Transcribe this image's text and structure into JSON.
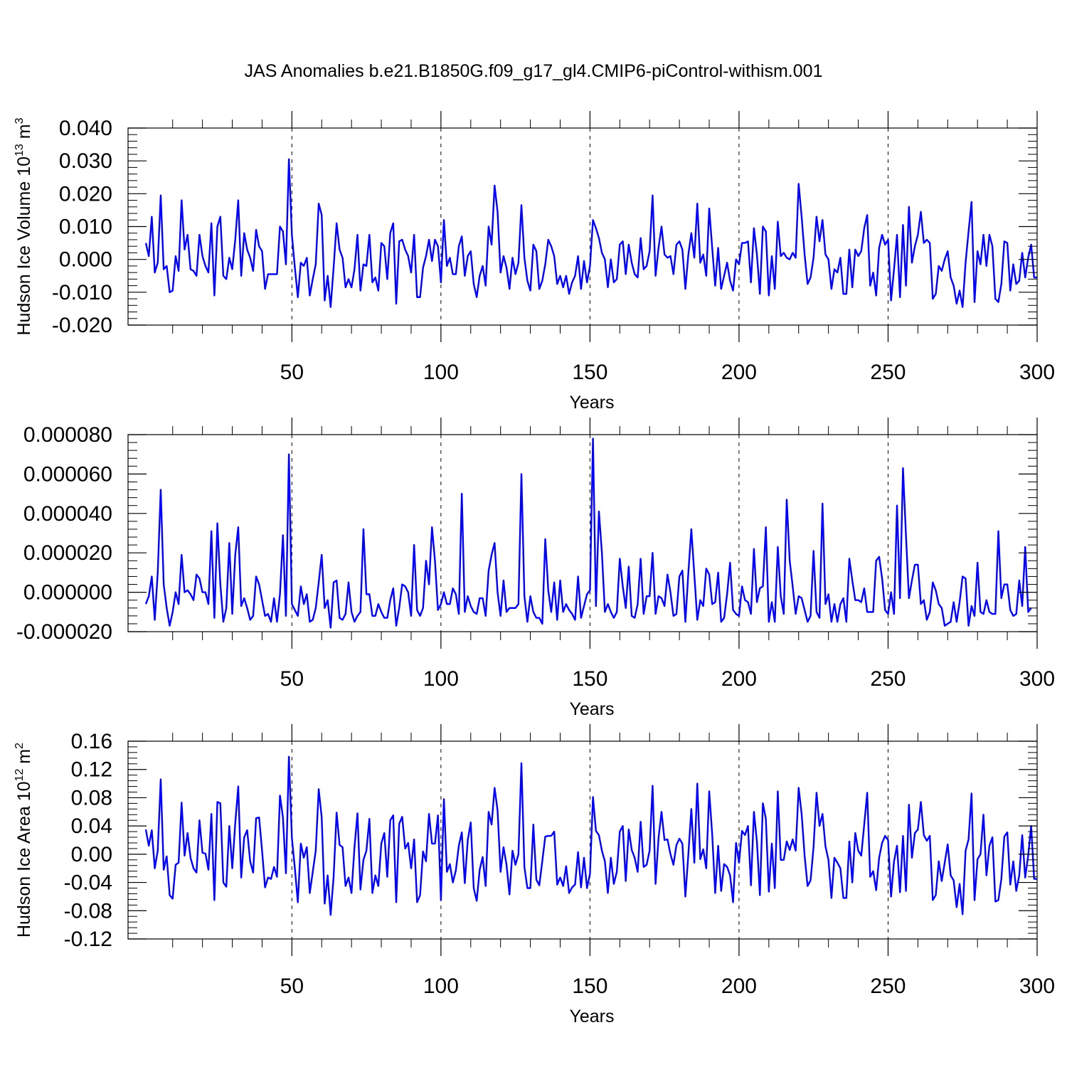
{
  "title": "JAS Anomalies b.e21.B1850G.f09_g17_gl4.CMIP6-piControl-withism.001",
  "chart_data": [
    {
      "type": "line",
      "xlabel": "Years",
      "ylabel": "Hudson Ice Volume 10",
      "ylabel_exp": "13",
      "ylabel_unit": " m",
      "ylabel_unit_exp": "3",
      "xlim": [
        1,
        300
      ],
      "ylim": [
        -0.02,
        0.04
      ],
      "x_ticks": [
        50,
        100,
        150,
        200,
        250,
        300
      ],
      "y_ticks": [
        -0.02,
        -0.01,
        0.0,
        0.01,
        0.02,
        0.03,
        0.04
      ],
      "y_tick_labels": [
        "-0.020",
        "-0.010",
        "0.000",
        "0.010",
        "0.020",
        "0.030",
        "0.040"
      ],
      "grid": "vertical dashed at x ticks",
      "color": "#0000ff",
      "x_start": 1,
      "x_step": 1,
      "values": [
        0.005,
        0.001,
        0.013,
        -0.004,
        -0.001,
        0.0195,
        -0.003,
        -0.002,
        -0.01,
        -0.0095,
        0.001,
        -0.0035,
        0.018,
        0.003,
        0.0075,
        -0.003,
        -0.0035,
        -0.005,
        0.0075,
        0.001,
        -0.002,
        -0.004,
        0.011,
        -0.011,
        0.01,
        0.013,
        -0.005,
        -0.006,
        0.0005,
        -0.003,
        0.006,
        0.018,
        -0.005,
        0.008,
        0.003,
        0.0005,
        -0.0035,
        0.009,
        0.004,
        0.0025,
        -0.009,
        -0.0045,
        -0.0045,
        -0.0045,
        -0.0045,
        0.01,
        0.0085,
        -0.0015,
        0.0305,
        0.0075,
        -0.0025,
        -0.0115,
        -0.001,
        -0.002,
        0.0005,
        -0.011,
        -0.006,
        -0.0015,
        0.017,
        0.0135,
        -0.0125,
        -0.005,
        -0.0145,
        -0.0025,
        0.011,
        0.003,
        0.0005,
        -0.0085,
        -0.006,
        -0.0085,
        -0.003,
        0.0075,
        -0.0095,
        -0.0015,
        -0.002,
        0.0075,
        -0.007,
        -0.0055,
        -0.0095,
        0.005,
        0.004,
        -0.006,
        0.008,
        0.011,
        -0.0135,
        0.0055,
        0.006,
        0.003,
        0.001,
        -0.004,
        0.0075,
        -0.0115,
        -0.0115,
        -0.0025,
        0.001,
        0.006,
        -0.0005,
        0.006,
        0.004,
        -0.007,
        0.012,
        -0.002,
        0.0005,
        -0.0045,
        -0.0045,
        0.004,
        0.007,
        -0.005,
        0.001,
        0.0025,
        -0.0075,
        -0.0115,
        -0.005,
        -0.002,
        -0.008,
        0.01,
        0.0045,
        0.0225,
        0.0145,
        -0.004,
        0.001,
        -0.0025,
        -0.009,
        0.0005,
        -0.0045,
        -0.001,
        0.0165,
        0.0005,
        -0.0065,
        -0.0095,
        0.0045,
        0.0025,
        -0.009,
        -0.0065,
        -0.0015,
        0.006,
        0.004,
        0.001,
        -0.0075,
        -0.005,
        -0.0085,
        -0.005,
        -0.0105,
        -0.007,
        -0.005,
        0.001,
        -0.009,
        -0.0005,
        -0.007,
        -0.002,
        0.012,
        0.0095,
        0.0065,
        0.002,
        0.0,
        -0.0085,
        0.0,
        -0.007,
        -0.006,
        0.0045,
        0.0055,
        -0.0045,
        0.0045,
        -0.001,
        -0.0045,
        -0.0055,
        0.0065,
        -0.003,
        -0.002,
        0.0025,
        0.0195,
        -0.005,
        0.0035,
        0.01,
        0.0015,
        0.0005,
        0.001,
        -0.0045,
        0.0045,
        0.0055,
        0.003,
        -0.009,
        0.0015,
        0.008,
        0.0005,
        0.017,
        -0.001,
        0.0015,
        -0.005,
        0.0155,
        0.0035,
        -0.008,
        0.0035,
        -0.009,
        -0.005,
        -0.001,
        -0.0065,
        -0.0095,
        0.0,
        -0.0015,
        0.005,
        0.005,
        0.0055,
        -0.007,
        0.0095,
        0.0015,
        -0.0105,
        0.01,
        0.0085,
        -0.011,
        0.001,
        -0.009,
        0.0115,
        0.001,
        0.002,
        0.0005,
        0.0,
        0.002,
        0.0005,
        0.023,
        0.013,
        0.0015,
        -0.0075,
        -0.0055,
        0.0005,
        0.013,
        0.0055,
        0.012,
        0.0015,
        0.0,
        -0.009,
        -0.003,
        -0.004,
        0.0005,
        -0.0105,
        -0.0105,
        0.003,
        -0.0085,
        0.003,
        0.001,
        0.0025,
        0.0095,
        0.0135,
        -0.008,
        -0.004,
        -0.011,
        0.0035,
        0.0075,
        0.0045,
        0.006,
        -0.0125,
        -0.003,
        0.0075,
        -0.0115,
        0.0105,
        -0.008,
        0.016,
        -0.001,
        0.004,
        0.0075,
        0.0145,
        0.005,
        0.006,
        0.005,
        -0.012,
        -0.0105,
        -0.002,
        -0.0035,
        0.0,
        0.0025,
        -0.0055,
        -0.008,
        -0.0135,
        -0.0095,
        -0.0145,
        -0.001,
        0.0085,
        0.0175,
        -0.013,
        0.0025,
        -0.0015,
        0.0075,
        -0.002,
        0.0075,
        0.004,
        -0.012,
        -0.013,
        -0.0075,
        0.0055,
        0.005,
        -0.0095,
        -0.0015,
        -0.0075,
        -0.0065,
        0.002,
        -0.0055,
        0.0005,
        0.0045,
        -0.0055,
        -0.0055
      ]
    },
    {
      "type": "line",
      "xlabel": "Years",
      "ylabel": "",
      "xlim": [
        1,
        300
      ],
      "ylim": [
        -2e-05,
        8e-05
      ],
      "x_ticks": [
        50,
        100,
        150,
        200,
        250,
        300
      ],
      "y_ticks": [
        -2e-05,
        0.0,
        2e-05,
        4e-05,
        6e-05,
        8e-05
      ],
      "y_tick_labels": [
        "-0.000020",
        "0.000000",
        "0.000020",
        "0.000040",
        "0.000060",
        "0.000080"
      ],
      "grid": "vertical dashed at x ticks",
      "color": "#0000ff",
      "x_start": 1,
      "x_step": 1,
      "values_unit_note": "",
      "values": [
        -6,
        -2,
        8,
        -14,
        10,
        52,
        4,
        -8,
        -17,
        -10,
        0,
        -6,
        19,
        0,
        1,
        -1,
        -4,
        9,
        7,
        0,
        0,
        -6,
        31,
        -13,
        35,
        4,
        -15,
        -8,
        25,
        -11,
        19,
        33,
        -7,
        -3,
        -8,
        -14,
        -12,
        8,
        4,
        -4,
        -12,
        -11,
        -15,
        -3,
        -15,
        -1,
        29,
        -12,
        70,
        -6,
        -9,
        -12,
        3,
        -6,
        -1,
        -15,
        -14,
        -8,
        5,
        19,
        -8,
        -4,
        -18,
        5,
        6,
        -13,
        -14,
        -11,
        5,
        -10,
        -15,
        -12,
        -10,
        32,
        -1,
        -1,
        -12,
        -12,
        -6,
        -10,
        -13,
        -13,
        -4,
        2,
        -17,
        -8,
        4,
        3,
        0,
        -12,
        24,
        -9,
        -12,
        -8,
        16,
        4,
        33,
        16,
        -9,
        -6,
        0,
        -6,
        -6,
        2,
        -1,
        -11,
        50,
        -10,
        -2,
        -7,
        -10,
        -11,
        -3,
        -3,
        -12,
        11,
        19,
        25,
        0,
        -12,
        6,
        -10,
        -8,
        -8,
        -8,
        -6,
        60,
        -2,
        -15,
        -2,
        -10,
        -13,
        -13,
        -16,
        27,
        1,
        -10,
        5,
        -14,
        6,
        -10,
        -6,
        -9,
        -11,
        -14,
        8,
        -13,
        -7,
        -1,
        1,
        78,
        -7,
        41,
        20,
        -10,
        -6,
        -10,
        -13,
        -10,
        17,
        3,
        -8,
        13,
        -12,
        -13,
        -6,
        17,
        -11,
        -2,
        -2,
        20,
        -11,
        -2,
        -3,
        -7,
        9,
        0,
        -12,
        -11,
        8,
        11,
        -15,
        10,
        32,
        9,
        -14,
        -4,
        -7,
        12,
        9,
        -6,
        -5,
        10,
        -15,
        -13,
        -1,
        15,
        -9,
        -11,
        -12,
        3,
        -4,
        -5,
        -11,
        22,
        -5,
        2,
        3,
        33,
        -15,
        -5,
        -15,
        23,
        -2,
        -11,
        47,
        16,
        3,
        -11,
        -2,
        -3,
        -9,
        -15,
        -12,
        21,
        -10,
        -13,
        45,
        -6,
        -1,
        -15,
        -6,
        -15,
        -6,
        -3,
        -15,
        17,
        6,
        -4,
        -4,
        -5,
        2,
        -10,
        -10,
        -10,
        16,
        18,
        7,
        -9,
        -11,
        0,
        -11,
        44,
        -3,
        63,
        29,
        -3,
        6,
        14,
        14,
        -6,
        -4,
        -14,
        -10,
        5,
        1,
        -6,
        -8,
        -17,
        -16,
        -15,
        -5,
        -15,
        -5,
        8,
        7,
        -17,
        -7,
        -12,
        15,
        -10,
        -11,
        -4,
        -10,
        -11,
        -11,
        31,
        -3,
        4,
        4,
        -9,
        -12,
        -11,
        6,
        -7,
        23,
        -10,
        -8
      ]
    },
    {
      "type": "line",
      "xlabel": "Years",
      "ylabel": "Hudson Ice Area 10",
      "ylabel_exp": "12",
      "ylabel_unit": " m",
      "ylabel_unit_exp": "2",
      "xlim": [
        1,
        300
      ],
      "ylim": [
        -0.12,
        0.16
      ],
      "x_ticks": [
        50,
        100,
        150,
        200,
        250,
        300
      ],
      "y_ticks": [
        -0.12,
        -0.08,
        -0.04,
        0.0,
        0.04,
        0.08,
        0.12,
        0.16
      ],
      "y_tick_labels": [
        "-0.12",
        "-0.08",
        "-0.04",
        "0.00",
        "0.04",
        "0.08",
        "0.12",
        "0.16"
      ],
      "grid": "vertical dashed at x ticks",
      "color": "#0000ff",
      "x_start": 1,
      "x_step": 1,
      "values": [
        0.035,
        0.012,
        0.034,
        -0.02,
        0.005,
        0.106,
        -0.022,
        -0.003,
        -0.058,
        -0.063,
        -0.015,
        -0.012,
        0.073,
        -0.002,
        0.03,
        -0.005,
        -0.02,
        -0.026,
        0.048,
        0.002,
        0.001,
        -0.022,
        0.057,
        -0.065,
        0.074,
        0.072,
        -0.04,
        -0.046,
        0.04,
        -0.02,
        0.044,
        0.096,
        -0.033,
        0.024,
        0.034,
        -0.01,
        -0.026,
        0.051,
        0.052,
        0.005,
        -0.047,
        -0.033,
        -0.035,
        -0.018,
        -0.032,
        0.083,
        0.052,
        -0.027,
        0.138,
        0.023,
        -0.02,
        -0.068,
        0.015,
        -0.005,
        0.01,
        -0.055,
        -0.025,
        0.005,
        0.092,
        0.052,
        -0.07,
        -0.03,
        -0.086,
        -0.032,
        0.059,
        0.013,
        0.01,
        -0.045,
        -0.033,
        -0.055,
        0.01,
        0.058,
        -0.05,
        -0.008,
        0.005,
        0.05,
        -0.055,
        -0.03,
        -0.045,
        0.015,
        0.03,
        -0.032,
        0.048,
        0.055,
        -0.068,
        0.043,
        0.053,
        0.008,
        0.016,
        -0.02,
        0.021,
        -0.068,
        -0.058,
        0.004,
        -0.01,
        0.057,
        0.015,
        0.015,
        0.055,
        -0.065,
        0.078,
        -0.025,
        -0.014,
        -0.04,
        -0.023,
        0.012,
        0.031,
        -0.041,
        0.02,
        0.045,
        -0.048,
        -0.066,
        -0.022,
        -0.004,
        -0.045,
        0.06,
        0.042,
        0.094,
        0.062,
        -0.025,
        0.01,
        -0.015,
        -0.057,
        0.005,
        -0.015,
        0.0,
        0.129,
        -0.018,
        -0.048,
        -0.048,
        0.042,
        -0.036,
        -0.044,
        -0.01,
        0.025,
        0.026,
        0.026,
        0.032,
        -0.043,
        -0.033,
        -0.045,
        -0.017,
        -0.055,
        -0.047,
        -0.043,
        0.003,
        -0.047,
        -0.005,
        -0.048,
        -0.028,
        0.081,
        0.033,
        0.027,
        0.005,
        -0.01,
        -0.055,
        -0.005,
        -0.042,
        -0.025,
        0.032,
        0.04,
        -0.038,
        0.035,
        0.006,
        -0.005,
        -0.025,
        0.046,
        -0.018,
        -0.015,
        0.005,
        0.097,
        -0.042,
        0.023,
        0.06,
        0.02,
        0.021,
        0.0,
        -0.015,
        0.013,
        0.022,
        0.015,
        -0.06,
        0.0,
        0.064,
        -0.012,
        0.1,
        -0.007,
        0.007,
        -0.02,
        0.089,
        0.028,
        -0.055,
        0.012,
        -0.052,
        -0.014,
        -0.018,
        -0.03,
        -0.068,
        0.016,
        -0.012,
        0.033,
        0.027,
        0.04,
        -0.044,
        0.06,
        0.018,
        -0.058,
        0.072,
        0.05,
        -0.053,
        0.015,
        -0.048,
        0.089,
        -0.008,
        -0.008,
        0.018,
        0.006,
        0.021,
        0.005,
        0.094,
        0.057,
        -0.002,
        -0.045,
        -0.037,
        0.01,
        0.087,
        0.04,
        0.057,
        0.011,
        -0.008,
        -0.062,
        -0.005,
        -0.012,
        -0.02,
        -0.062,
        -0.062,
        0.018,
        -0.04,
        0.03,
        0.005,
        -0.002,
        0.042,
        0.087,
        -0.032,
        -0.024,
        -0.051,
        -0.005,
        0.016,
        0.026,
        0.02,
        -0.06,
        -0.01,
        0.012,
        -0.054,
        0.026,
        -0.052,
        0.07,
        -0.005,
        0.03,
        0.035,
        0.074,
        0.027,
        0.019,
        0.026,
        -0.065,
        -0.058,
        -0.01,
        -0.038,
        -0.012,
        0.014,
        -0.03,
        -0.037,
        -0.075,
        -0.042,
        -0.085,
        0.005,
        0.021,
        0.086,
        -0.065,
        -0.007,
        0.0,
        0.056,
        -0.03,
        0.012,
        0.024,
        -0.067,
        -0.065,
        -0.035,
        0.025,
        0.031,
        -0.043,
        -0.01,
        -0.052,
        -0.03,
        0.027,
        -0.033,
        -0.002,
        0.04,
        -0.035,
        -0.035
      ]
    }
  ]
}
